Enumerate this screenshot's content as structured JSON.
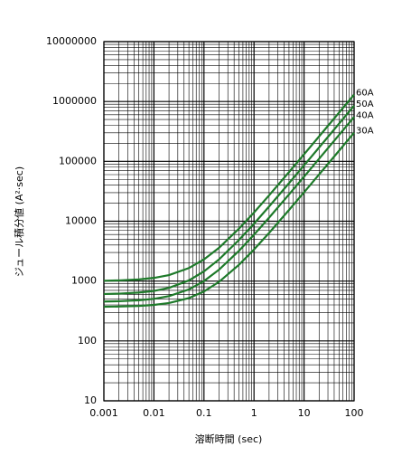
{
  "chart_data": {
    "type": "line",
    "x_label": "溶断時間 (sec)",
    "y_label": "ジュール積分値 (A²·sec)",
    "x": [
      0.001,
      0.002,
      0.005,
      0.01,
      0.02,
      0.05,
      0.1,
      0.2,
      0.5,
      1,
      2,
      5,
      10,
      20,
      50,
      100
    ],
    "series": [
      {
        "name": "60A",
        "color": "#1e7a2a",
        "values": [
          1013,
          1026,
          1065,
          1130,
          1260,
          1650,
          2300,
          3600,
          7500,
          14000,
          27000,
          66000,
          131000,
          261000,
          651000,
          1301000
        ]
      },
      {
        "name": "50A",
        "color": "#1e7a2a",
        "values": [
          609,
          617,
          643,
          685,
          770,
          1025,
          1450,
          2300,
          4850,
          9100,
          17600,
          43100,
          85600,
          170600,
          425600,
          850600
        ]
      },
      {
        "name": "40A",
        "color": "#1e7a2a",
        "values": [
          456,
          461,
          478,
          505,
          560,
          725,
          1000,
          1550,
          3200,
          5950,
          11450,
          27950,
          55450,
          110450,
          275450,
          550450
        ]
      },
      {
        "name": "30A",
        "color": "#1e7a2a",
        "values": [
          373,
          376,
          385,
          400,
          430,
          520,
          670,
          970,
          1870,
          3370,
          6370,
          15370,
          30370,
          60370,
          150370,
          300370
        ]
      }
    ],
    "x_log": true,
    "y_log": true,
    "xlim": [
      0.001,
      100
    ],
    "ylim": [
      10,
      10000000
    ],
    "xticks": [
      0.001,
      0.01,
      0.1,
      1,
      10,
      100
    ],
    "yticks": [
      10,
      100,
      1000,
      10000,
      100000,
      1000000,
      10000000
    ],
    "grid": true,
    "minor_grid": true
  }
}
